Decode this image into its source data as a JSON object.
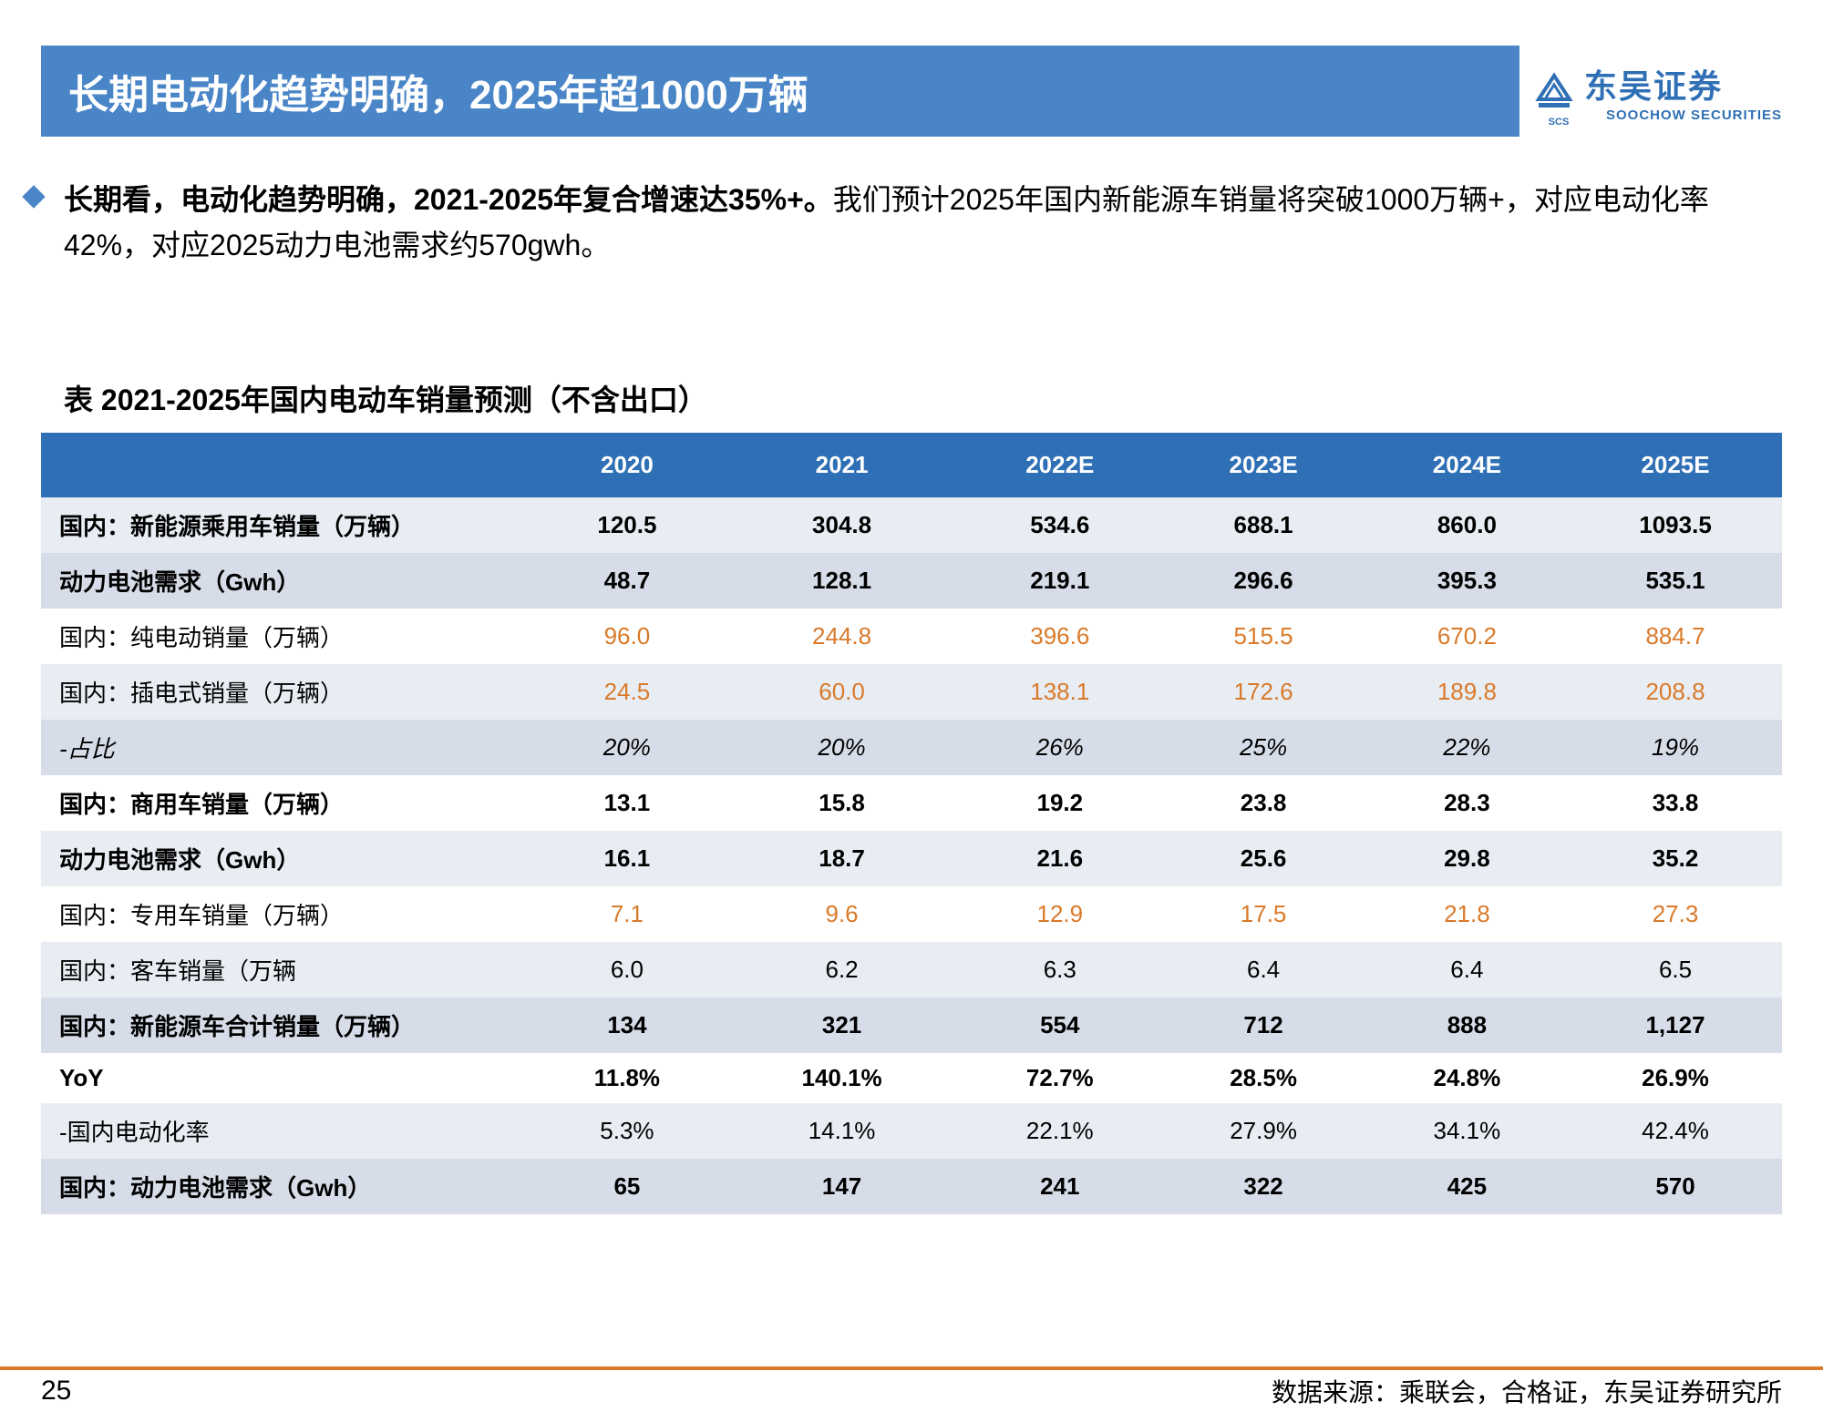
{
  "header": {
    "title": "长期电动化趋势明确，2025年超1000万辆",
    "logo_cn": "东吴证券",
    "logo_en": "SOOCHOW SECURITIES",
    "logo_scs": "SCS"
  },
  "body": {
    "bold_part": "长期看，电动化趋势明确，2021-2025年复合增速达35%+。",
    "rest_part": "我们预计2025年国内新能源车销量将突破1000万辆+，对应电动化率42%，对应2025动力电池需求约570gwh。"
  },
  "table": {
    "title": "表  2021-2025年国内电动车销量预测（不含出口）",
    "columns": [
      "",
      "2020",
      "2021",
      "2022E",
      "2023E",
      "2024E",
      "2025E"
    ],
    "rows": [
      {
        "label": "国内：新能源乘用车销量（万辆）",
        "cells": [
          "120.5",
          "304.8",
          "534.6",
          "688.1",
          "860.0",
          "1093.5"
        ],
        "style": "bold",
        "shade": "light",
        "color": "black"
      },
      {
        "label": "动力电池需求（Gwh）",
        "cells": [
          "48.7",
          "128.1",
          "219.1",
          "296.6",
          "395.3",
          "535.1"
        ],
        "style": "bold",
        "shade": "mid",
        "color": "black"
      },
      {
        "label": "国内：纯电动销量（万辆）",
        "cells": [
          "96.0",
          "244.8",
          "396.6",
          "515.5",
          "670.2",
          "884.7"
        ],
        "style": "normal",
        "shade": "white",
        "color": "orange"
      },
      {
        "label": "国内：插电式销量（万辆）",
        "cells": [
          "24.5",
          "60.0",
          "138.1",
          "172.6",
          "189.8",
          "208.8"
        ],
        "style": "normal",
        "shade": "light",
        "color": "orange"
      },
      {
        "label": "-占比",
        "cells": [
          "20%",
          "20%",
          "26%",
          "25%",
          "22%",
          "19%"
        ],
        "style": "italic",
        "shade": "mid",
        "color": "black"
      },
      {
        "label": "国内：商用车销量（万辆）",
        "cells": [
          "13.1",
          "15.8",
          "19.2",
          "23.8",
          "28.3",
          "33.8"
        ],
        "style": "bold",
        "shade": "white",
        "color": "black"
      },
      {
        "label": "动力电池需求（Gwh）",
        "cells": [
          "16.1",
          "18.7",
          "21.6",
          "25.6",
          "29.8",
          "35.2"
        ],
        "style": "bold",
        "shade": "light",
        "color": "black"
      },
      {
        "label": "国内：专用车销量（万辆）",
        "cells": [
          "7.1",
          "9.6",
          "12.9",
          "17.5",
          "21.8",
          "27.3"
        ],
        "style": "normal",
        "shade": "white",
        "color": "orange"
      },
      {
        "label": "国内：客车销量（万辆",
        "cells": [
          "6.0",
          "6.2",
          "6.3",
          "6.4",
          "6.4",
          "6.5"
        ],
        "style": "normal",
        "shade": "light",
        "color": "black"
      },
      {
        "label": "国内：新能源车合计销量（万辆）",
        "cells": [
          "134",
          "321",
          "554",
          "712",
          "888",
          "1,127"
        ],
        "style": "bold",
        "shade": "mid",
        "color": "black"
      },
      {
        "label": "YoY",
        "cells": [
          "11.8%",
          "140.1%",
          "72.7%",
          "28.5%",
          "24.8%",
          "26.9%"
        ],
        "style": "bold",
        "shade": "white",
        "color": "black"
      },
      {
        "label": "-国内电动化率",
        "cells": [
          "5.3%",
          "14.1%",
          "22.1%",
          "27.9%",
          "34.1%",
          "42.4%"
        ],
        "style": "normal",
        "shade": "light",
        "color": "black"
      },
      {
        "label": "国内：动力电池需求（Gwh）",
        "cells": [
          "65",
          "147",
          "241",
          "322",
          "425",
          "570"
        ],
        "style": "bold",
        "shade": "mid",
        "color": "black"
      }
    ]
  },
  "footer": {
    "page": "25",
    "source": "数据来源：乘联会，合格证，东吴证券研究所"
  },
  "colors": {
    "title_bg": "#4a86c7",
    "header_bg": "#2e6fb5",
    "accent_orange": "#d97a2a",
    "shade_light": "#e8edf4",
    "shade_mid": "#d6dde8",
    "white": "#ffffff",
    "text": "#000000"
  }
}
